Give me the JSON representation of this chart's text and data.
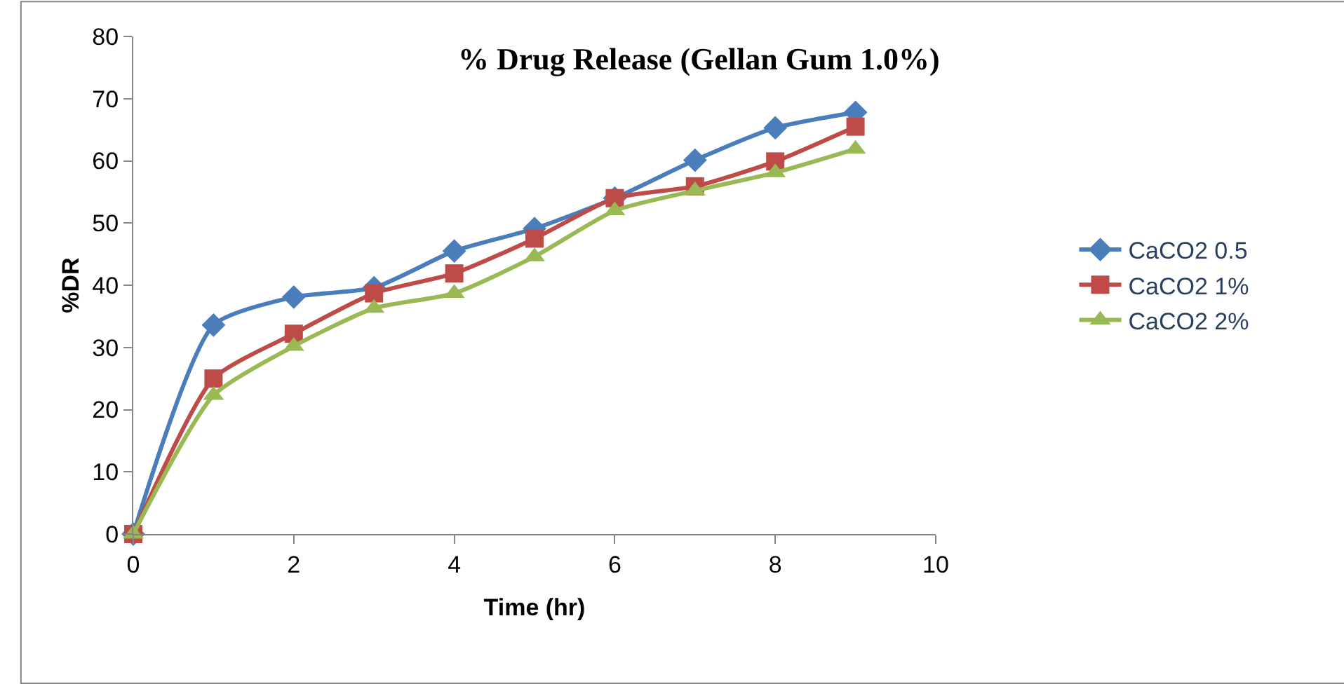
{
  "chart_data": {
    "type": "line",
    "title": "% Drug Release (Gellan Gum 1.0%)",
    "xlabel": "Time (hr)",
    "ylabel": "%DR",
    "x": [
      0,
      1,
      2,
      3,
      4,
      5,
      6,
      7,
      8,
      9
    ],
    "series": [
      {
        "name": "CaCO2 0.5",
        "color": "#4a7ebb",
        "marker": "diamond",
        "values": [
          0,
          33.6,
          38.1,
          39.6,
          45.5,
          49.1,
          54.0,
          60.1,
          65.3,
          67.8
        ]
      },
      {
        "name": "CaCO2 1%",
        "color": "#be4b48",
        "marker": "square",
        "values": [
          0,
          25.0,
          32.2,
          38.7,
          41.9,
          47.5,
          54.0,
          55.9,
          59.9,
          65.5
        ]
      },
      {
        "name": "CaCO2 2%",
        "color": "#98b954",
        "marker": "triangle",
        "values": [
          0,
          22.3,
          30.2,
          36.3,
          38.7,
          44.6,
          52.0,
          55.2,
          58.1,
          61.9
        ]
      }
    ],
    "xlim": [
      0,
      10
    ],
    "xticks": [
      0,
      2,
      4,
      6,
      8,
      10
    ],
    "ylim": [
      0,
      80
    ],
    "yticks": [
      0,
      10,
      20,
      30,
      40,
      50,
      60,
      70,
      80
    ],
    "grid": false,
    "legend": "right"
  }
}
